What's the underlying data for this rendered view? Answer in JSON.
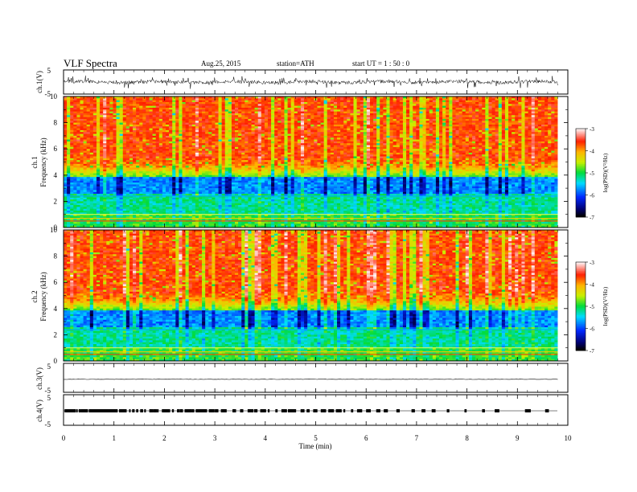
{
  "header": {
    "title": "VLF Spectra",
    "date": "Aug.25, 2015",
    "station": "station=ATH",
    "start": "start UT =  1 : 50 : 0"
  },
  "chart_data": [
    {
      "type": "line",
      "id": "ch1-waveform",
      "ylabel": "ch.1(V)",
      "ylim": [
        -5,
        5
      ],
      "yticks": [
        "5",
        "-5"
      ],
      "xlim": [
        0,
        10
      ],
      "description_level": "noisy waveform near 0 V with spikes up to about ±2.5 V"
    },
    {
      "type": "heatmap",
      "id": "ch1-spectrogram",
      "ylabel_top": "ch.1",
      "ylabel": "Frequency (kHz)",
      "ylim": [
        0,
        10
      ],
      "yticks": [
        "0",
        "2",
        "4",
        "6",
        "8",
        "10"
      ],
      "xlim": [
        0,
        9.8
      ],
      "colorbar": {
        "label": "log(PSD)(V²/Hz)",
        "range": [
          -7,
          -3
        ],
        "ticks": [
          "-3",
          "-4",
          "-5",
          "-6",
          "-7"
        ]
      }
    },
    {
      "type": "heatmap",
      "id": "ch2-spectrogram",
      "ylabel_top": "ch.2",
      "ylabel": "Frequency (kHz)",
      "ylim": [
        0,
        10
      ],
      "yticks": [
        "0",
        "2",
        "4",
        "6",
        "8",
        "10"
      ],
      "xlim": [
        0,
        9.8
      ],
      "colorbar": {
        "label": "log(PSD)(V²/Hz)",
        "range": [
          -7,
          -3
        ],
        "ticks": [
          "-3",
          "-4",
          "-5",
          "-6",
          "-7"
        ]
      }
    },
    {
      "type": "line",
      "id": "ch3-waveform",
      "ylabel": "ch.3(V)",
      "ylim": [
        -5,
        5
      ],
      "yticks": [
        "5",
        "-5"
      ],
      "level": -0.5
    },
    {
      "type": "line",
      "id": "ch4-waveform",
      "ylabel": "ch.4(V)",
      "ylim": [
        -5,
        5
      ],
      "yticks": [
        "5",
        "-5"
      ],
      "level": 0,
      "pulse_times": [
        0.02,
        0.05,
        0.08,
        0.12,
        0.16,
        0.2,
        0.25,
        0.3,
        0.34,
        0.38,
        0.45,
        0.5,
        0.55,
        0.62,
        0.68,
        0.74,
        0.8,
        0.86,
        0.9,
        0.96,
        1.02,
        1.1,
        1.15,
        1.22,
        1.3,
        1.36,
        1.44,
        1.52,
        1.6,
        1.7,
        1.78,
        1.86,
        1.95,
        2.05,
        2.15,
        2.25,
        2.3,
        2.4,
        2.5,
        2.55,
        2.62,
        2.7,
        2.78,
        2.88,
        3.0,
        3.12,
        3.2,
        3.35,
        3.5,
        3.65,
        3.78,
        3.9,
        4.05,
        4.2,
        4.32,
        4.45,
        4.55,
        4.7,
        4.82,
        4.95,
        5.1,
        5.25,
        5.4,
        5.55,
        5.7,
        5.82,
        6.0,
        6.2,
        6.35,
        6.6,
        6.9,
        7.1,
        7.3,
        7.6,
        7.95,
        8.3,
        8.55,
        9.15,
        9.2,
        9.55
      ]
    }
  ],
  "xaxis": {
    "label": "Time (min)",
    "ticks": [
      "0",
      "1",
      "2",
      "3",
      "4",
      "5",
      "6",
      "7",
      "8",
      "9",
      "10"
    ],
    "range": [
      0,
      10
    ]
  }
}
